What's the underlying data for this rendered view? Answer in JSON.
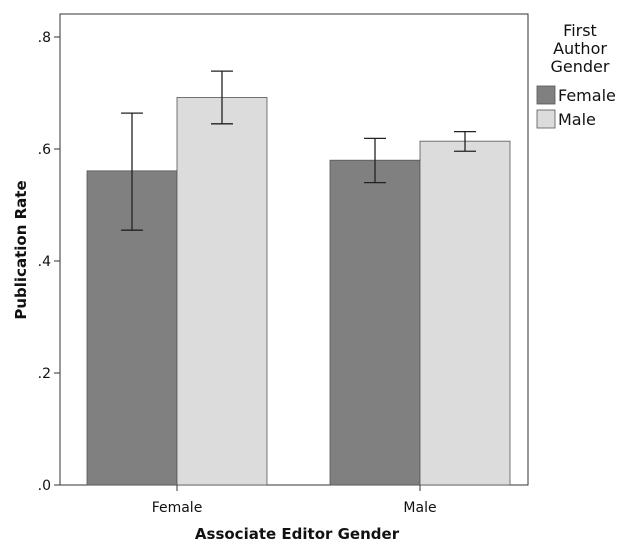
{
  "chart_data": {
    "type": "bar",
    "title": "",
    "xlabel": "Associate Editor Gender",
    "ylabel": "Publication Rate",
    "categories": [
      "Female",
      "Male"
    ],
    "ylim": [
      0,
      0.8
    ],
    "yticks": [
      0,
      0.2,
      0.4,
      0.6,
      0.8
    ],
    "ytick_labels": [
      ".0",
      ".2",
      ".4",
      ".6",
      ".8"
    ],
    "grid": false,
    "error_bars": true,
    "legend": {
      "title": "First Author Gender",
      "title_lines": [
        "First",
        "Author",
        "Gender"
      ],
      "placement": "right"
    },
    "series": [
      {
        "name": "Female",
        "color": "#808080",
        "values": [
          0.561,
          0.58
        ],
        "error_low": [
          0.455,
          0.54
        ],
        "error_high": [
          0.664,
          0.619
        ]
      },
      {
        "name": "Male",
        "color": "#dcdcdc",
        "values": [
          0.692,
          0.614
        ],
        "error_low": [
          0.645,
          0.596
        ],
        "error_high": [
          0.739,
          0.631
        ]
      }
    ]
  }
}
